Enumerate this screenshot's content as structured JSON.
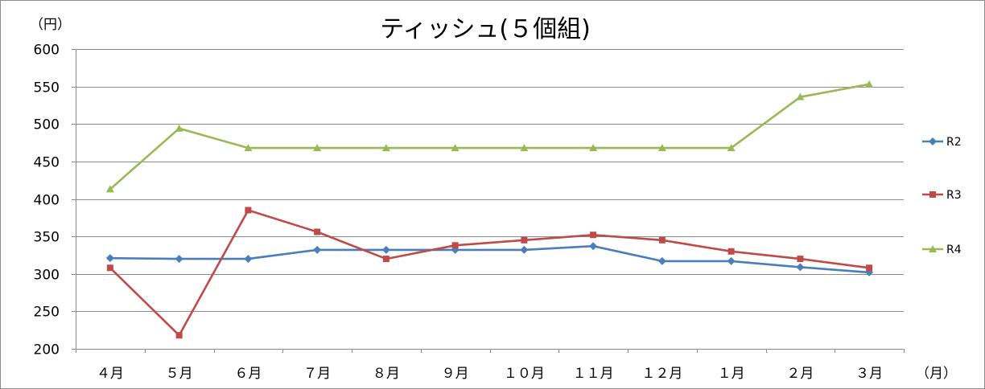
{
  "chart_data": {
    "type": "line",
    "title": "ティッシュ(５個組)",
    "ylabel": "（円）",
    "xlabel": "（月）",
    "ylim": [
      200,
      600
    ],
    "yticks": [
      200,
      250,
      300,
      350,
      400,
      450,
      500,
      550,
      600
    ],
    "ytick_labels": [
      "200",
      "250",
      "300",
      "350",
      "400",
      "450",
      "500",
      "550",
      "600"
    ],
    "categories": [
      "４月",
      "５月",
      "６月",
      "７月",
      "８月",
      "９月",
      "１０月",
      "１１月",
      "１２月",
      "１月",
      "２月",
      "３月"
    ],
    "grid": true,
    "legend_position": "right",
    "series": [
      {
        "name": "R2",
        "color": "#4a7ebb",
        "marker": "diamond",
        "values": [
          321,
          320,
          320,
          332,
          332,
          332,
          332,
          337,
          317,
          317,
          309,
          302
        ]
      },
      {
        "name": "R3",
        "color": "#be4b48",
        "marker": "square",
        "values": [
          308,
          218,
          385,
          356,
          320,
          338,
          345,
          352,
          345,
          330,
          320,
          308
        ]
      },
      {
        "name": "R4",
        "color": "#98b954",
        "marker": "triangle",
        "values": [
          413,
          494,
          468,
          468,
          468,
          468,
          468,
          468,
          468,
          468,
          536,
          553
        ]
      }
    ]
  }
}
